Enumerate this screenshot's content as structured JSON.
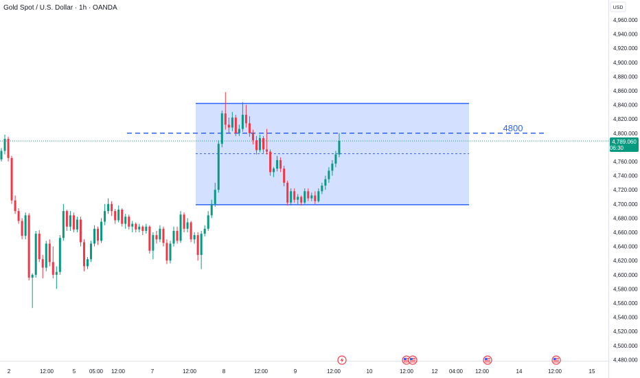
{
  "header": {
    "title": "Gold Spot / U.S. Dollar · 1h · OANDA"
  },
  "price_scale": {
    "currency": "USD",
    "ticks": [
      "4,960.000",
      "4,940.000",
      "4,920.000",
      "4,900.000",
      "4,880.000",
      "4,860.000",
      "4,840.000",
      "4,820.000",
      "4,800.000",
      "4,780.000",
      "4,760.000",
      "4,740.000",
      "4,720.000",
      "4,700.000",
      "4,680.000",
      "4,660.000",
      "4,640.000",
      "4,620.000",
      "4,600.000",
      "4,580.000",
      "4,560.000",
      "4,540.000",
      "4,520.000",
      "4,500.000",
      "4,480.000"
    ]
  },
  "time_axis": {
    "labels": [
      "2",
      "12:00",
      "5",
      "05:00",
      "12:00",
      "7",
      "12:00",
      "8",
      "12:00",
      "9",
      "12:00",
      "10",
      "12:00",
      "12",
      "04:00",
      "12:00",
      "14",
      "12:00",
      "15"
    ]
  },
  "current_price": {
    "value": "4,789.060",
    "countdown": "06:30",
    "color": "#089981"
  },
  "annotations": {
    "level_label": "4800",
    "level_color": "#2962ff",
    "zone_color": "#2962ff"
  },
  "event_icons": [
    "lightning-icon",
    "us-flag-icon",
    "us-flag-icon",
    "us-flag-icon",
    "us-flag-icon"
  ],
  "colors": {
    "up": "#089981",
    "down": "#f23645"
  },
  "chart_data": {
    "type": "candlestick",
    "title": "Gold Spot / U.S. Dollar · 1h · OANDA",
    "y_unit": "USD",
    "ylim": [
      4480,
      4970
    ],
    "grid": false,
    "current_price": 4789.06,
    "horizontal_level": 4800,
    "range_box": {
      "top": 4842,
      "bottom": 4699,
      "mid": 4771
    },
    "candles": [
      {
        "o": 4763,
        "h": 4779,
        "l": 4760,
        "c": 4775
      },
      {
        "o": 4775,
        "h": 4798,
        "l": 4770,
        "c": 4792
      },
      {
        "o": 4792,
        "h": 4795,
        "l": 4760,
        "c": 4765
      },
      {
        "o": 4765,
        "h": 4768,
        "l": 4700,
        "c": 4705
      },
      {
        "o": 4705,
        "h": 4712,
        "l": 4686,
        "c": 4690
      },
      {
        "o": 4690,
        "h": 4694,
        "l": 4672,
        "c": 4676
      },
      {
        "o": 4676,
        "h": 4680,
        "l": 4650,
        "c": 4655
      },
      {
        "o": 4655,
        "h": 4688,
        "l": 4650,
        "c": 4684
      },
      {
        "o": 4684,
        "h": 4687,
        "l": 4592,
        "c": 4596
      },
      {
        "o": 4596,
        "h": 4602,
        "l": 4553,
        "c": 4600
      },
      {
        "o": 4600,
        "h": 4662,
        "l": 4596,
        "c": 4658
      },
      {
        "o": 4658,
        "h": 4663,
        "l": 4618,
        "c": 4622
      },
      {
        "o": 4622,
        "h": 4628,
        "l": 4595,
        "c": 4610
      },
      {
        "o": 4610,
        "h": 4648,
        "l": 4605,
        "c": 4644
      },
      {
        "o": 4644,
        "h": 4650,
        "l": 4612,
        "c": 4618
      },
      {
        "o": 4618,
        "h": 4640,
        "l": 4595,
        "c": 4600
      },
      {
        "o": 4600,
        "h": 4612,
        "l": 4580,
        "c": 4604
      },
      {
        "o": 4604,
        "h": 4656,
        "l": 4600,
        "c": 4652
      },
      {
        "o": 4652,
        "h": 4700,
        "l": 4648,
        "c": 4690
      },
      {
        "o": 4690,
        "h": 4692,
        "l": 4662,
        "c": 4668
      },
      {
        "o": 4668,
        "h": 4690,
        "l": 4662,
        "c": 4684
      },
      {
        "o": 4684,
        "h": 4688,
        "l": 4660,
        "c": 4664
      },
      {
        "o": 4664,
        "h": 4682,
        "l": 4660,
        "c": 4678
      },
      {
        "o": 4678,
        "h": 4682,
        "l": 4640,
        "c": 4646
      },
      {
        "o": 4646,
        "h": 4650,
        "l": 4605,
        "c": 4612
      },
      {
        "o": 4612,
        "h": 4625,
        "l": 4608,
        "c": 4622
      },
      {
        "o": 4622,
        "h": 4648,
        "l": 4618,
        "c": 4644
      },
      {
        "o": 4644,
        "h": 4670,
        "l": 4640,
        "c": 4665
      },
      {
        "o": 4665,
        "h": 4668,
        "l": 4642,
        "c": 4648
      },
      {
        "o": 4648,
        "h": 4680,
        "l": 4645,
        "c": 4675
      },
      {
        "o": 4675,
        "h": 4700,
        "l": 4670,
        "c": 4690
      },
      {
        "o": 4690,
        "h": 4708,
        "l": 4686,
        "c": 4700
      },
      {
        "o": 4700,
        "h": 4704,
        "l": 4683,
        "c": 4690
      },
      {
        "o": 4690,
        "h": 4693,
        "l": 4672,
        "c": 4677
      },
      {
        "o": 4677,
        "h": 4698,
        "l": 4674,
        "c": 4692
      },
      {
        "o": 4692,
        "h": 4694,
        "l": 4668,
        "c": 4672
      },
      {
        "o": 4672,
        "h": 4686,
        "l": 4665,
        "c": 4682
      },
      {
        "o": 4682,
        "h": 4685,
        "l": 4664,
        "c": 4668
      },
      {
        "o": 4668,
        "h": 4676,
        "l": 4660,
        "c": 4672
      },
      {
        "o": 4672,
        "h": 4674,
        "l": 4660,
        "c": 4664
      },
      {
        "o": 4664,
        "h": 4672,
        "l": 4660,
        "c": 4668
      },
      {
        "o": 4668,
        "h": 4670,
        "l": 4656,
        "c": 4662
      },
      {
        "o": 4662,
        "h": 4672,
        "l": 4658,
        "c": 4668
      },
      {
        "o": 4668,
        "h": 4670,
        "l": 4630,
        "c": 4634
      },
      {
        "o": 4634,
        "h": 4660,
        "l": 4622,
        "c": 4656
      },
      {
        "o": 4656,
        "h": 4662,
        "l": 4644,
        "c": 4650
      },
      {
        "o": 4650,
        "h": 4670,
        "l": 4646,
        "c": 4665
      },
      {
        "o": 4665,
        "h": 4668,
        "l": 4640,
        "c": 4645
      },
      {
        "o": 4645,
        "h": 4650,
        "l": 4615,
        "c": 4620
      },
      {
        "o": 4620,
        "h": 4648,
        "l": 4616,
        "c": 4644
      },
      {
        "o": 4644,
        "h": 4668,
        "l": 4640,
        "c": 4662
      },
      {
        "o": 4662,
        "h": 4668,
        "l": 4644,
        "c": 4648
      },
      {
        "o": 4648,
        "h": 4690,
        "l": 4645,
        "c": 4685
      },
      {
        "o": 4685,
        "h": 4688,
        "l": 4660,
        "c": 4665
      },
      {
        "o": 4665,
        "h": 4680,
        "l": 4660,
        "c": 4674
      },
      {
        "o": 4674,
        "h": 4676,
        "l": 4646,
        "c": 4650
      },
      {
        "o": 4650,
        "h": 4660,
        "l": 4644,
        "c": 4656
      },
      {
        "o": 4656,
        "h": 4660,
        "l": 4620,
        "c": 4628
      },
      {
        "o": 4628,
        "h": 4662,
        "l": 4608,
        "c": 4658
      },
      {
        "o": 4658,
        "h": 4670,
        "l": 4654,
        "c": 4665
      },
      {
        "o": 4665,
        "h": 4690,
        "l": 4662,
        "c": 4684
      },
      {
        "o": 4684,
        "h": 4706,
        "l": 4680,
        "c": 4700
      },
      {
        "o": 4700,
        "h": 4730,
        "l": 4696,
        "c": 4720
      },
      {
        "o": 4720,
        "h": 4790,
        "l": 4716,
        "c": 4785
      },
      {
        "o": 4785,
        "h": 4832,
        "l": 4780,
        "c": 4828
      },
      {
        "o": 4828,
        "h": 4858,
        "l": 4805,
        "c": 4812
      },
      {
        "o": 4812,
        "h": 4822,
        "l": 4800,
        "c": 4808
      },
      {
        "o": 4808,
        "h": 4830,
        "l": 4803,
        "c": 4822
      },
      {
        "o": 4822,
        "h": 4826,
        "l": 4796,
        "c": 4800
      },
      {
        "o": 4800,
        "h": 4812,
        "l": 4796,
        "c": 4806
      },
      {
        "o": 4806,
        "h": 4844,
        "l": 4802,
        "c": 4826
      },
      {
        "o": 4826,
        "h": 4840,
        "l": 4808,
        "c": 4814
      },
      {
        "o": 4814,
        "h": 4824,
        "l": 4795,
        "c": 4800
      },
      {
        "o": 4800,
        "h": 4805,
        "l": 4784,
        "c": 4790
      },
      {
        "o": 4790,
        "h": 4796,
        "l": 4770,
        "c": 4776
      },
      {
        "o": 4776,
        "h": 4798,
        "l": 4773,
        "c": 4793
      },
      {
        "o": 4793,
        "h": 4796,
        "l": 4772,
        "c": 4777
      },
      {
        "o": 4777,
        "h": 4806,
        "l": 4770,
        "c": 4774
      },
      {
        "o": 4774,
        "h": 4777,
        "l": 4740,
        "c": 4745
      },
      {
        "o": 4745,
        "h": 4752,
        "l": 4738,
        "c": 4750
      },
      {
        "o": 4750,
        "h": 4768,
        "l": 4746,
        "c": 4762
      },
      {
        "o": 4762,
        "h": 4766,
        "l": 4745,
        "c": 4750
      },
      {
        "o": 4750,
        "h": 4754,
        "l": 4725,
        "c": 4730
      },
      {
        "o": 4730,
        "h": 4733,
        "l": 4698,
        "c": 4702
      },
      {
        "o": 4702,
        "h": 4722,
        "l": 4698,
        "c": 4718
      },
      {
        "o": 4718,
        "h": 4722,
        "l": 4702,
        "c": 4706
      },
      {
        "o": 4706,
        "h": 4714,
        "l": 4700,
        "c": 4710
      },
      {
        "o": 4710,
        "h": 4712,
        "l": 4698,
        "c": 4702
      },
      {
        "o": 4702,
        "h": 4722,
        "l": 4700,
        "c": 4718
      },
      {
        "o": 4718,
        "h": 4722,
        "l": 4704,
        "c": 4708
      },
      {
        "o": 4708,
        "h": 4716,
        "l": 4704,
        "c": 4712
      },
      {
        "o": 4712,
        "h": 4718,
        "l": 4700,
        "c": 4704
      },
      {
        "o": 4704,
        "h": 4722,
        "l": 4702,
        "c": 4718
      },
      {
        "o": 4718,
        "h": 4730,
        "l": 4714,
        "c": 4726
      },
      {
        "o": 4726,
        "h": 4740,
        "l": 4720,
        "c": 4735
      },
      {
        "o": 4735,
        "h": 4752,
        "l": 4730,
        "c": 4747
      },
      {
        "o": 4747,
        "h": 4762,
        "l": 4740,
        "c": 4757
      },
      {
        "o": 4757,
        "h": 4775,
        "l": 4752,
        "c": 4770
      },
      {
        "o": 4770,
        "h": 4800,
        "l": 4766,
        "c": 4789
      }
    ]
  }
}
